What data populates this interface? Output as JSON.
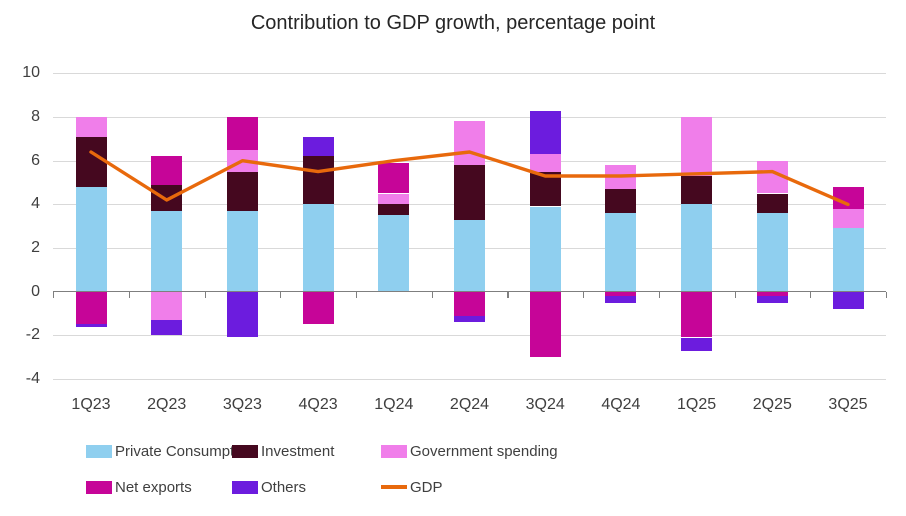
{
  "title": "Contribution to GDP growth, percentage point",
  "colors": {
    "background": "#FFFFFF",
    "gridline": "#D9D9D9",
    "zero_axis": "#7F7F7F",
    "text": "#3F3F3F",
    "title_text": "#262626"
  },
  "chart_data": {
    "type": "bar",
    "subtype": "stacked-bars-with-line-overlay",
    "title": "Contribution to GDP growth, percentage point",
    "ylabel": "",
    "xlabel": "",
    "ylim": [
      -4,
      10
    ],
    "y_ticks": [
      10,
      8,
      6,
      4,
      2,
      0,
      -2,
      -4
    ],
    "grid": true,
    "legend_position": "bottom",
    "categories": [
      "1Q23",
      "2Q23",
      "3Q23",
      "4Q23",
      "1Q24",
      "2Q24",
      "3Q24",
      "4Q24",
      "1Q25",
      "2Q25",
      "3Q25"
    ],
    "series": [
      {
        "name": "Private Consumption",
        "color": "#8FCFEF",
        "values": [
          4.8,
          3.7,
          3.7,
          4.0,
          3.5,
          3.3,
          3.9,
          3.6,
          4.0,
          3.6,
          2.9
        ]
      },
      {
        "name": "Investment",
        "color": "#45081F",
        "values": [
          2.3,
          1.2,
          1.8,
          2.2,
          0.5,
          2.5,
          1.6,
          1.1,
          1.3,
          0.9,
          0.0
        ]
      },
      {
        "name": "Government spending",
        "color": "#F07EEA",
        "values": [
          0.9,
          -1.3,
          1.0,
          0.0,
          0.5,
          2.0,
          0.8,
          1.1,
          2.7,
          1.5,
          0.9
        ]
      },
      {
        "name": "Net exports",
        "color": "#C60598",
        "values": [
          -1.5,
          1.3,
          1.5,
          -1.5,
          1.4,
          -1.1,
          -3.0,
          -0.2,
          -2.1,
          -0.2,
          1.0
        ]
      },
      {
        "name": "Others",
        "color": "#6C1CDE",
        "values": [
          -0.1,
          -0.7,
          -2.1,
          0.9,
          0.0,
          -0.3,
          2.0,
          -0.3,
          -0.6,
          -0.3,
          -0.8
        ]
      }
    ],
    "line_series": {
      "name": "GDP",
      "color": "#E8690C",
      "values": [
        6.4,
        4.2,
        6.0,
        5.5,
        6.0,
        6.4,
        5.3,
        5.3,
        5.4,
        5.5,
        4.0
      ]
    }
  },
  "legend": {
    "row1": [
      "Private Consumption",
      "Investment",
      "Government spending"
    ],
    "row2": [
      "Net exports",
      "Others",
      "GDP"
    ]
  }
}
